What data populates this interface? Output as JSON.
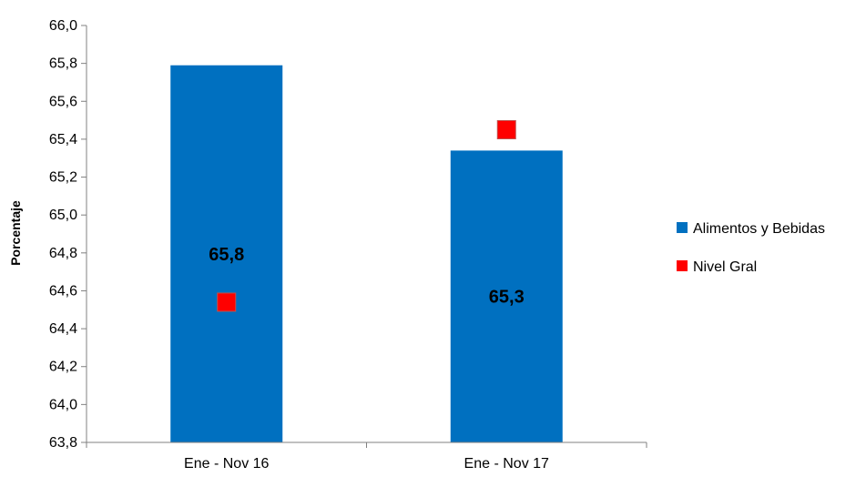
{
  "chart_data": {
    "type": "bar",
    "categories": [
      "Ene - Nov 16",
      "Ene - Nov 17"
    ],
    "series": [
      {
        "name": "Alimentos y Bebidas",
        "kind": "bar",
        "color": "#0070C0",
        "values": [
          65.79,
          65.34
        ],
        "labels": [
          "65,8",
          "65,3"
        ]
      },
      {
        "name": "Nivel Gral",
        "kind": "marker",
        "color": "#FF0000",
        "values": [
          64.54,
          65.45
        ]
      }
    ],
    "title": "",
    "xlabel": "",
    "ylabel": "Porcentaje",
    "ylim": [
      63.8,
      66.0
    ],
    "yticks": [
      "63,8",
      "64,0",
      "64,2",
      "64,4",
      "64,6",
      "64,8",
      "65,0",
      "65,2",
      "65,4",
      "65,6",
      "65,8",
      "66,0"
    ],
    "grid": false,
    "legend_position": "right"
  }
}
